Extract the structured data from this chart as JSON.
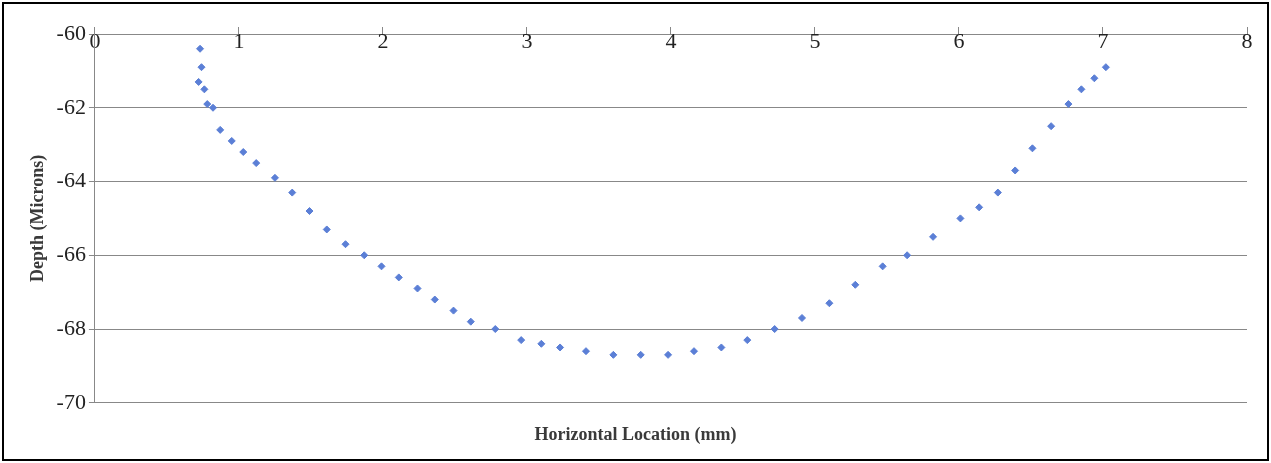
{
  "chart_data": {
    "type": "scatter",
    "xlabel": "Horizontal Location (mm)",
    "ylabel": "Depth (Microns)",
    "xlim": [
      0,
      8
    ],
    "xticks": [
      0,
      1,
      2,
      3,
      4,
      5,
      6,
      7,
      8
    ],
    "ylim": [
      -70,
      -60
    ],
    "yticks": [
      -70,
      -68,
      -66,
      -64,
      -62,
      -60
    ],
    "grid": "y",
    "marker": "diamond",
    "legend": false,
    "series": [
      {
        "color": "#5b7fd6",
        "x": [
          0.72,
          0.73,
          0.74,
          0.76,
          0.78,
          0.82,
          0.87,
          0.95,
          1.03,
          1.12,
          1.25,
          1.37,
          1.49,
          1.61,
          1.74,
          1.87,
          1.99,
          2.11,
          2.24,
          2.36,
          2.49,
          2.61,
          2.78,
          2.96,
          3.1,
          3.23,
          3.41,
          3.6,
          3.79,
          3.98,
          4.16,
          4.35,
          4.53,
          4.72,
          4.91,
          5.1,
          5.28,
          5.47,
          5.64,
          5.82,
          6.01,
          6.14,
          6.27,
          6.39,
          6.51,
          6.64,
          6.76,
          6.85,
          6.94,
          7.02
        ],
        "values": [
          -61.3,
          -60.4,
          -60.9,
          -61.5,
          -61.9,
          -62.0,
          -62.6,
          -62.9,
          -63.2,
          -63.5,
          -63.9,
          -64.3,
          -64.8,
          -65.3,
          -65.7,
          -66.0,
          -66.3,
          -66.6,
          -66.9,
          -67.2,
          -67.5,
          -67.8,
          -68.0,
          -68.3,
          -68.4,
          -68.5,
          -68.6,
          -68.7,
          -68.7,
          -68.7,
          -68.6,
          -68.5,
          -68.3,
          -68.0,
          -67.7,
          -67.3,
          -66.8,
          -66.3,
          -66.0,
          -65.5,
          -65.0,
          -64.7,
          -64.3,
          -63.7,
          -63.1,
          -62.5,
          -61.9,
          -61.5,
          -61.2,
          -60.9
        ]
      }
    ]
  }
}
